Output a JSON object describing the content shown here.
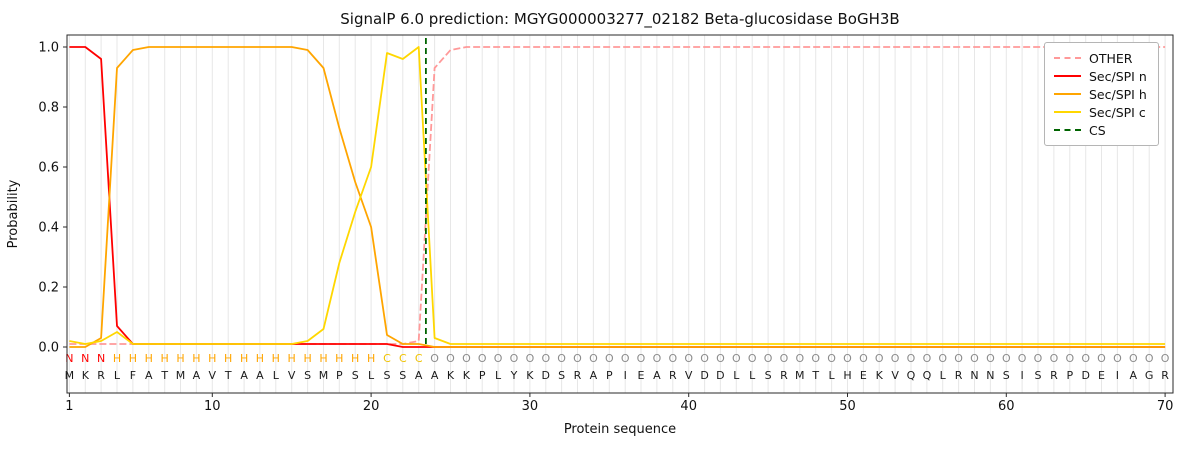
{
  "chart_data": {
    "type": "line",
    "title": "SignalP 6.0 prediction: MGYG000003277_02182 Beta-glucosidase BoGH3B",
    "xlabel": "Protein sequence",
    "ylabel": "Probability",
    "xlim": [
      0.85,
      70.5
    ],
    "ylim": [
      -0.1533,
      1.04
    ],
    "xticks": [
      1,
      10,
      20,
      30,
      40,
      50,
      60,
      70
    ],
    "yticks": [
      "0.0",
      "0.2",
      "0.4",
      "0.6",
      "0.8",
      "1.0"
    ],
    "grid": "vertical-per-residue",
    "grid_color": "#e7e7e7",
    "legend_position": "upper-right",
    "x": "positions 1-70",
    "series": [
      {
        "name": "OTHER",
        "color": "#ff9999",
        "style": "dashed",
        "values": [
          0.01,
          0.01,
          0.01,
          0.01,
          0.01,
          0.01,
          0.01,
          0.01,
          0.01,
          0.01,
          0.01,
          0.01,
          0.01,
          0.01,
          0.01,
          0.01,
          0.01,
          0.01,
          0.01,
          0.01,
          0.01,
          0.01,
          0.02,
          0.93,
          0.99,
          1.0,
          1.0,
          1.0,
          1.0,
          1.0,
          1.0,
          1.0,
          1.0,
          1.0,
          1.0,
          1.0,
          1.0,
          1.0,
          1.0,
          1.0,
          1.0,
          1.0,
          1.0,
          1.0,
          1.0,
          1.0,
          1.0,
          1.0,
          1.0,
          1.0,
          1.0,
          1.0,
          1.0,
          1.0,
          1.0,
          1.0,
          1.0,
          1.0,
          1.0,
          1.0,
          1.0,
          1.0,
          1.0,
          1.0,
          1.0,
          1.0,
          1.0,
          1.0,
          1.0,
          1.0
        ]
      },
      {
        "name": "Sec/SPI n",
        "color": "#ff0000",
        "style": "solid",
        "values": [
          1.0,
          1.0,
          0.96,
          0.07,
          0.01,
          0.01,
          0.01,
          0.01,
          0.01,
          0.01,
          0.01,
          0.01,
          0.01,
          0.01,
          0.01,
          0.01,
          0.01,
          0.01,
          0.01,
          0.01,
          0.01,
          0.0,
          0.0,
          0.0,
          0.0,
          0.0,
          0.0,
          0.0,
          0.0,
          0.0,
          0.0,
          0.0,
          0.0,
          0.0,
          0.0,
          0.0,
          0.0,
          0.0,
          0.0,
          0.0,
          0.0,
          0.0,
          0.0,
          0.0,
          0.0,
          0.0,
          0.0,
          0.0,
          0.0,
          0.0,
          0.0,
          0.0,
          0.0,
          0.0,
          0.0,
          0.0,
          0.0,
          0.0,
          0.0,
          0.0,
          0.0,
          0.0,
          0.0,
          0.0,
          0.0,
          0.0,
          0.0,
          0.0,
          0.0,
          0.0
        ]
      },
      {
        "name": "Sec/SPI h",
        "color": "#ffa500",
        "style": "solid",
        "values": [
          0.0,
          0.0,
          0.03,
          0.93,
          0.99,
          1.0,
          1.0,
          1.0,
          1.0,
          1.0,
          1.0,
          1.0,
          1.0,
          1.0,
          1.0,
          0.99,
          0.93,
          0.73,
          0.55,
          0.4,
          0.04,
          0.01,
          0.01,
          0.0,
          0.0,
          0.0,
          0.0,
          0.0,
          0.0,
          0.0,
          0.0,
          0.0,
          0.0,
          0.0,
          0.0,
          0.0,
          0.0,
          0.0,
          0.0,
          0.0,
          0.0,
          0.0,
          0.0,
          0.0,
          0.0,
          0.0,
          0.0,
          0.0,
          0.0,
          0.0,
          0.0,
          0.0,
          0.0,
          0.0,
          0.0,
          0.0,
          0.0,
          0.0,
          0.0,
          0.0,
          0.0,
          0.0,
          0.0,
          0.0,
          0.0,
          0.0,
          0.0,
          0.0,
          0.0,
          0.0
        ]
      },
      {
        "name": "Sec/SPI c",
        "color": "#ffd700",
        "style": "solid",
        "values": [
          0.02,
          0.01,
          0.02,
          0.05,
          0.01,
          0.01,
          0.01,
          0.01,
          0.01,
          0.01,
          0.01,
          0.01,
          0.01,
          0.01,
          0.01,
          0.02,
          0.06,
          0.28,
          0.45,
          0.6,
          0.98,
          0.96,
          1.0,
          0.03,
          0.01,
          0.01,
          0.01,
          0.01,
          0.01,
          0.01,
          0.01,
          0.01,
          0.01,
          0.01,
          0.01,
          0.01,
          0.01,
          0.01,
          0.01,
          0.01,
          0.01,
          0.01,
          0.01,
          0.01,
          0.01,
          0.01,
          0.01,
          0.01,
          0.01,
          0.01,
          0.01,
          0.01,
          0.01,
          0.01,
          0.01,
          0.01,
          0.01,
          0.01,
          0.01,
          0.01,
          0.01,
          0.01,
          0.01,
          0.01,
          0.01,
          0.01,
          0.01,
          0.01,
          0.01,
          0.01
        ]
      }
    ],
    "cs_line": {
      "name": "CS",
      "x": 23.45,
      "color": "#006400",
      "style": "dashed"
    },
    "sequence": "MKRLFATMAVTAALVSMPSLSSAAKKPLYKDSRAPIEARVDDLLSRMTLHEKVQQLRNNSISRPDEIAGR",
    "regions": [
      {
        "letter": "N",
        "start": 1,
        "end": 3,
        "color": "#ff0000"
      },
      {
        "letter": "H",
        "start": 4,
        "end": 20,
        "color": "#ffa500"
      },
      {
        "letter": "C",
        "start": 21,
        "end": 23,
        "color": "#f0c200"
      },
      {
        "letter": "O",
        "start": 24,
        "end": 70,
        "color": "#8c8c8c"
      }
    ],
    "sequence_color": "#1a1a1a"
  },
  "legend": {
    "items": [
      {
        "label": "OTHER",
        "color": "#ff9999",
        "style": "dashed"
      },
      {
        "label": "Sec/SPI n",
        "color": "#ff0000",
        "style": "solid"
      },
      {
        "label": "Sec/SPI h",
        "color": "#ffa500",
        "style": "solid"
      },
      {
        "label": "Sec/SPI c",
        "color": "#ffd700",
        "style": "solid"
      },
      {
        "label": "CS",
        "color": "#006400",
        "style": "dashed"
      }
    ]
  }
}
